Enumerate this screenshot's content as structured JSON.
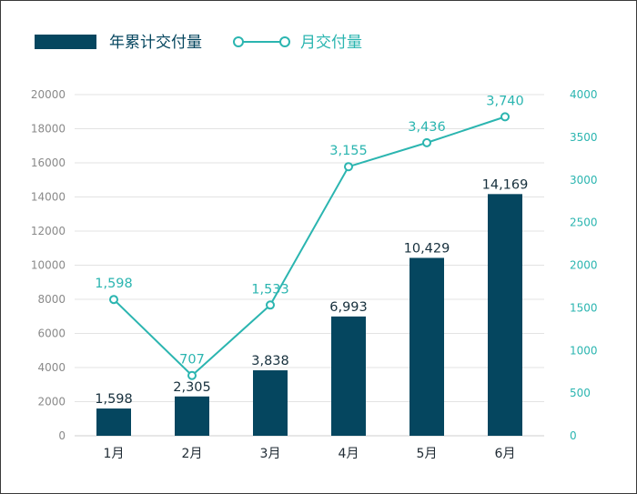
{
  "chart_data": {
    "type": "bar+line",
    "categories": [
      "1月",
      "2月",
      "3月",
      "4月",
      "5月",
      "6月"
    ],
    "series": [
      {
        "name": "年累计交付量",
        "type": "bar",
        "axis": "left",
        "values": [
          1598,
          2305,
          3838,
          6993,
          10429,
          14169
        ],
        "labels": [
          "1,598",
          "2,305",
          "3,838",
          "6,993",
          "10,429",
          "14,169"
        ],
        "color": "#05465f"
      },
      {
        "name": "月交付量",
        "type": "line",
        "axis": "right",
        "values": [
          1598,
          707,
          1533,
          3155,
          3436,
          3740
        ],
        "labels": [
          "1,598",
          "707",
          "1,533",
          "3,155",
          "3,436",
          "3,740"
        ],
        "color": "#2bb5b0"
      }
    ],
    "left_axis": {
      "ylim": [
        0,
        20000
      ],
      "ticks": [
        "0",
        "2000",
        "4000",
        "6000",
        "8000",
        "10000",
        "12000",
        "14000",
        "16000",
        "18000",
        "20000"
      ]
    },
    "right_axis": {
      "ylim": [
        0,
        4000
      ],
      "ticks": [
        "0",
        "500",
        "1000",
        "1500",
        "2000",
        "2500",
        "3000",
        "3500",
        "4000"
      ]
    },
    "legend": "top-left",
    "grid": true
  }
}
